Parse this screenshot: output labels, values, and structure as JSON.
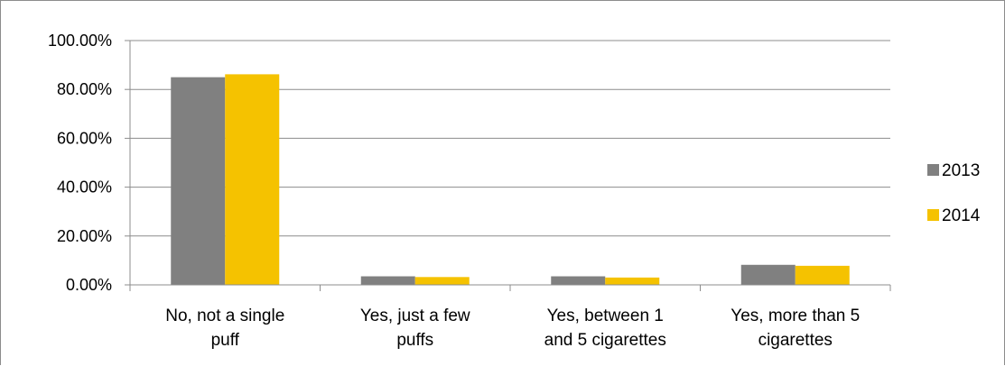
{
  "chart_data": {
    "type": "bar",
    "categories": [
      [
        "No, not a single",
        "puff"
      ],
      [
        "Yes, just a few",
        "puffs"
      ],
      [
        "Yes, between 1",
        "and 5 cigarettes"
      ],
      [
        "Yes, more than 5",
        "cigarettes"
      ]
    ],
    "series": [
      {
        "name": "2013",
        "color": "#808080",
        "values": [
          0.85,
          0.035,
          0.035,
          0.082
        ]
      },
      {
        "name": "2014",
        "color": "#F5C200",
        "values": [
          0.862,
          0.032,
          0.03,
          0.078
        ]
      }
    ],
    "ylim": [
      0,
      1
    ],
    "yticks": [
      "0.00%",
      "20.00%",
      "40.00%",
      "60.00%",
      "80.00%",
      "100.00%"
    ],
    "grid": true,
    "legend_position": "right",
    "title": "",
    "xlabel": "",
    "ylabel": ""
  }
}
